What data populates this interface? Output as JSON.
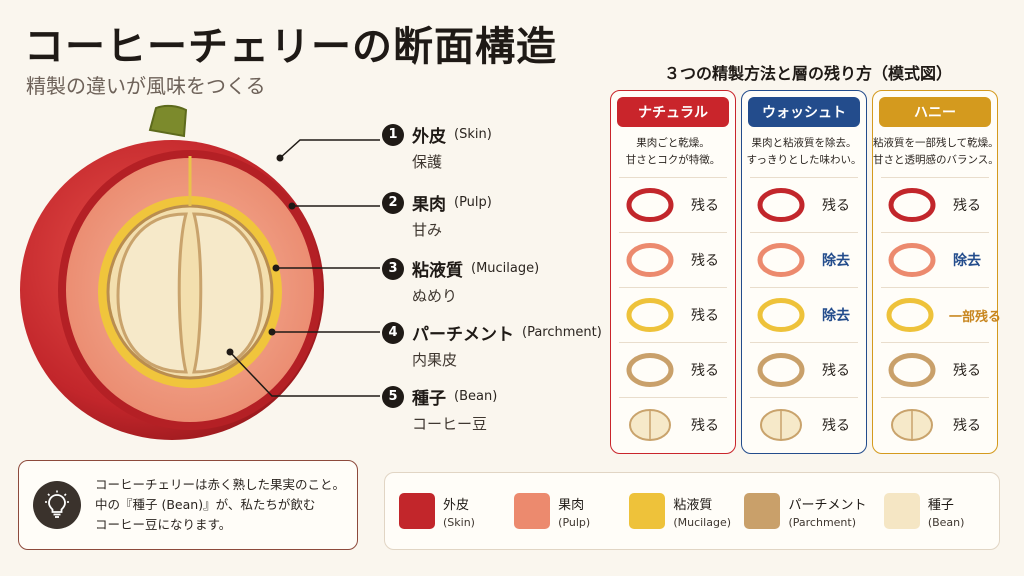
{
  "header": {
    "title": "コーヒーチェリーの断面構造",
    "subtitle": "精製の違いが風味をつくる"
  },
  "layers": [
    {
      "number": "1",
      "name": "外皮",
      "name_en": "(Skin)",
      "description": "保護",
      "color": "#c2262b"
    },
    {
      "number": "2",
      "name": "果肉",
      "name_en": "(Pulp)",
      "description": "甘み",
      "color": "#ec8a6e"
    },
    {
      "number": "3",
      "name": "粘液質",
      "name_en": "(Mucilage)",
      "description": "ぬめり",
      "color": "#eec23a"
    },
    {
      "number": "4",
      "name": "パーチメント",
      "name_en": "(Parchment)",
      "description": "内果皮",
      "color": "#c9a06a"
    },
    {
      "number": "5",
      "name": "種子",
      "name_en": "(Bean)",
      "description": "コーヒー豆",
      "color": "#f5e6c4"
    }
  ],
  "processing": {
    "title": "３つの精製方法と層の残り方（模式図）",
    "methods": [
      {
        "name": "ナチュラル",
        "color": "#c9252b",
        "desc_line1": "果肉ごと乾燥。",
        "desc_line2": "甘さとコクが特徴。",
        "rows": [
          {
            "status": "残る",
            "kind": "keep"
          },
          {
            "status": "残る",
            "kind": "keep"
          },
          {
            "status": "残る",
            "kind": "keep"
          },
          {
            "status": "残る",
            "kind": "keep"
          },
          {
            "status": "残る",
            "kind": "keep"
          }
        ]
      },
      {
        "name": "ウォッシュト",
        "color": "#234c8c",
        "desc_line1": "果肉と粘液質を除去。",
        "desc_line2": "すっきりとした味わい。",
        "rows": [
          {
            "status": "残る",
            "kind": "keep"
          },
          {
            "status": "除去",
            "kind": "removed"
          },
          {
            "status": "除去",
            "kind": "removed"
          },
          {
            "status": "残る",
            "kind": "keep"
          },
          {
            "status": "残る",
            "kind": "keep"
          }
        ]
      },
      {
        "name": "ハニー",
        "color": "#d49a1e",
        "desc_line1": "粘液質を一部残して乾燥。",
        "desc_line2": "甘さと透明感のバランス。",
        "rows": [
          {
            "status": "残る",
            "kind": "keep"
          },
          {
            "status": "除去",
            "kind": "removed"
          },
          {
            "status": "一部残る",
            "kind": "partial"
          },
          {
            "status": "残る",
            "kind": "keep"
          },
          {
            "status": "残る",
            "kind": "keep"
          }
        ]
      }
    ]
  },
  "tip": {
    "icon": "lightbulb-icon",
    "line1": "コーヒーチェリーは赤く熟した果実のこと。",
    "line2": "中の『種子 (Bean)』が、私たちが飲む",
    "line3": "コーヒー豆になります。"
  },
  "legend": [
    {
      "name": "外皮",
      "name_en": "(Skin)",
      "color": "#c2262b"
    },
    {
      "name": "果肉",
      "name_en": "(Pulp)",
      "color": "#ec8a6e"
    },
    {
      "name": "粘液質",
      "name_en": "(Mucilage)",
      "color": "#eec23a"
    },
    {
      "name": "パーチメント",
      "name_en": "(Parchment)",
      "color": "#c9a06a"
    },
    {
      "name": "種子",
      "name_en": "(Bean)",
      "color": "#f5e6c4"
    }
  ]
}
